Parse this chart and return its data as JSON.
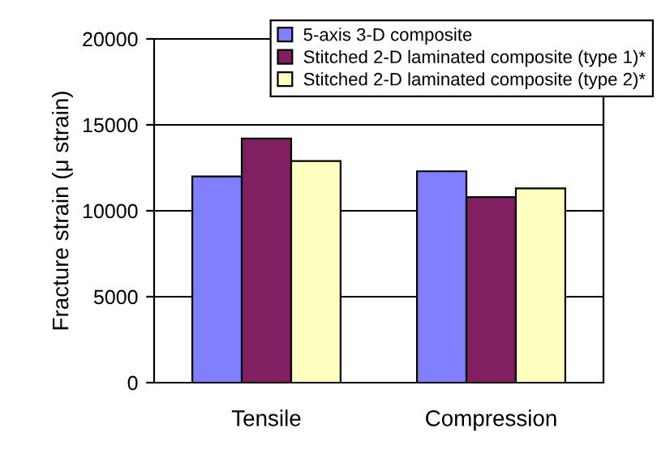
{
  "chart_data": {
    "type": "bar",
    "ylabel": "Fracture strain (μ strain)",
    "categories": [
      "Tensile",
      "Compression"
    ],
    "series": [
      {
        "name": "5-axis 3-D composite",
        "color": "#8080ff",
        "values": [
          12000,
          12300
        ]
      },
      {
        "name": "Stitched 2-D laminated composite (type 1)*",
        "color": "#802060",
        "values": [
          14200,
          10800
        ]
      },
      {
        "name": "Stitched 2-D laminated composite (type 2)*",
        "color": "#ffffc0",
        "values": [
          12900,
          11300
        ]
      }
    ],
    "ylim": [
      0,
      20000
    ],
    "yticks": [
      0,
      5000,
      10000,
      15000,
      20000
    ],
    "grid": "y",
    "legend": "top right"
  }
}
